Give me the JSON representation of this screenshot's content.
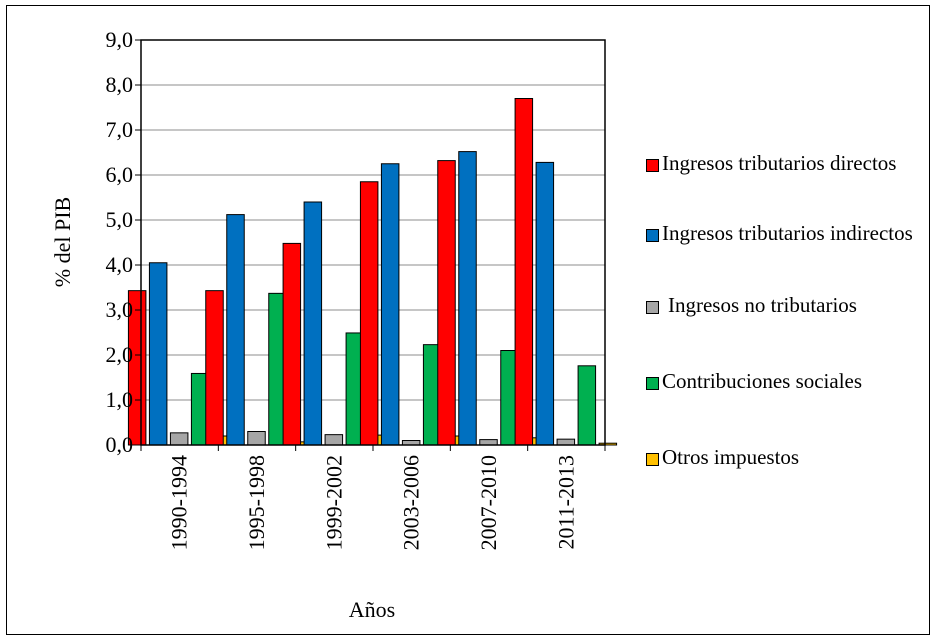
{
  "chart_data": {
    "type": "bar",
    "ylabel": "% del PIB",
    "xlabel": "Años",
    "ylim": [
      0,
      9
    ],
    "yticks": [
      "0,0",
      "1,0",
      "2,0",
      "3,0",
      "4,0",
      "5,0",
      "6,0",
      "7,0",
      "8,0",
      "9,0"
    ],
    "grid": true,
    "legend_position": "right",
    "categories": [
      "1990-1994",
      "1995-1998",
      "1999-2002",
      "2003-2006",
      "2007-2010",
      "2011-2013"
    ],
    "series": [
      {
        "name": "Ingresos tributarios directos",
        "color": "#ff0000",
        "values": [
          3.43,
          3.43,
          4.48,
          5.85,
          6.32,
          7.7
        ]
      },
      {
        "name": "Ingresos tributarios indirectos",
        "color": "#0070c0",
        "values": [
          4.05,
          5.12,
          5.4,
          6.25,
          6.52,
          6.28
        ]
      },
      {
        "name": "Ingresos no tributarios",
        "color": "#a6a6a6",
        "values": [
          0.27,
          0.3,
          0.23,
          0.1,
          0.12,
          0.13
        ]
      },
      {
        "name": "Contribuciones sociales",
        "color": "#00b050",
        "values": [
          1.59,
          3.37,
          2.49,
          2.23,
          2.1,
          1.76
        ]
      },
      {
        "name": "Otros impuestos",
        "color": "#ffc000",
        "values": [
          0.2,
          0.07,
          0.22,
          0.2,
          0.16,
          0.04
        ]
      }
    ]
  }
}
